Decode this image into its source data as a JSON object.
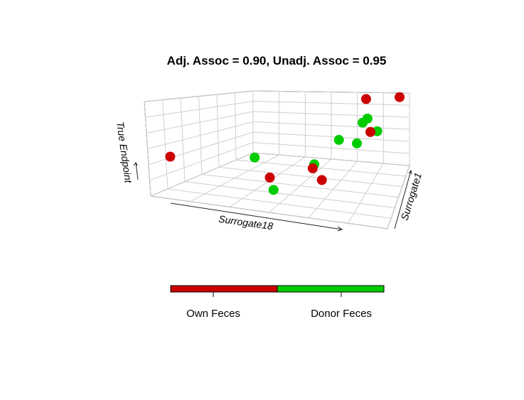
{
  "chart_data": {
    "type": "scatter",
    "projection": "3d",
    "title": "Adj. Assoc = 0.90, Unadj. Assoc = 0.95",
    "xlabel": "Surrogate18",
    "ylabel": "Surrogate1",
    "zlabel": "True Endpoint",
    "grid": true,
    "legend": {
      "placement": "bottom",
      "style": "colorbar",
      "entries": [
        {
          "label": "Own Feces",
          "color": "#cc0000"
        },
        {
          "label": "Donor Feces",
          "color": "#00cc00"
        }
      ]
    },
    "series": [
      {
        "name": "Own Feces",
        "color": "#cc0000",
        "points": [
          {
            "x": 0.05,
            "y": 0.1,
            "z": 0.4
          },
          {
            "x": 0.45,
            "y": 0.2,
            "z": 0.25
          },
          {
            "x": 0.62,
            "y": 0.3,
            "z": 0.35
          },
          {
            "x": 0.65,
            "y": 0.35,
            "z": 0.2
          },
          {
            "x": 0.85,
            "y": 0.55,
            "z": 0.7
          },
          {
            "x": 0.75,
            "y": 0.9,
            "z": 0.95
          },
          {
            "x": 0.95,
            "y": 0.92,
            "z": 0.98
          }
        ]
      },
      {
        "name": "Donor Feces",
        "color": "#00cc00",
        "points": [
          {
            "x": 0.35,
            "y": 0.3,
            "z": 0.4
          },
          {
            "x": 0.48,
            "y": 0.15,
            "z": 0.15
          },
          {
            "x": 0.62,
            "y": 0.33,
            "z": 0.38
          },
          {
            "x": 0.7,
            "y": 0.5,
            "z": 0.6
          },
          {
            "x": 0.78,
            "y": 0.55,
            "z": 0.55
          },
          {
            "x": 0.8,
            "y": 0.6,
            "z": 0.78
          },
          {
            "x": 0.82,
            "y": 0.63,
            "z": 0.82
          },
          {
            "x": 0.88,
            "y": 0.58,
            "z": 0.7
          }
        ]
      }
    ]
  }
}
